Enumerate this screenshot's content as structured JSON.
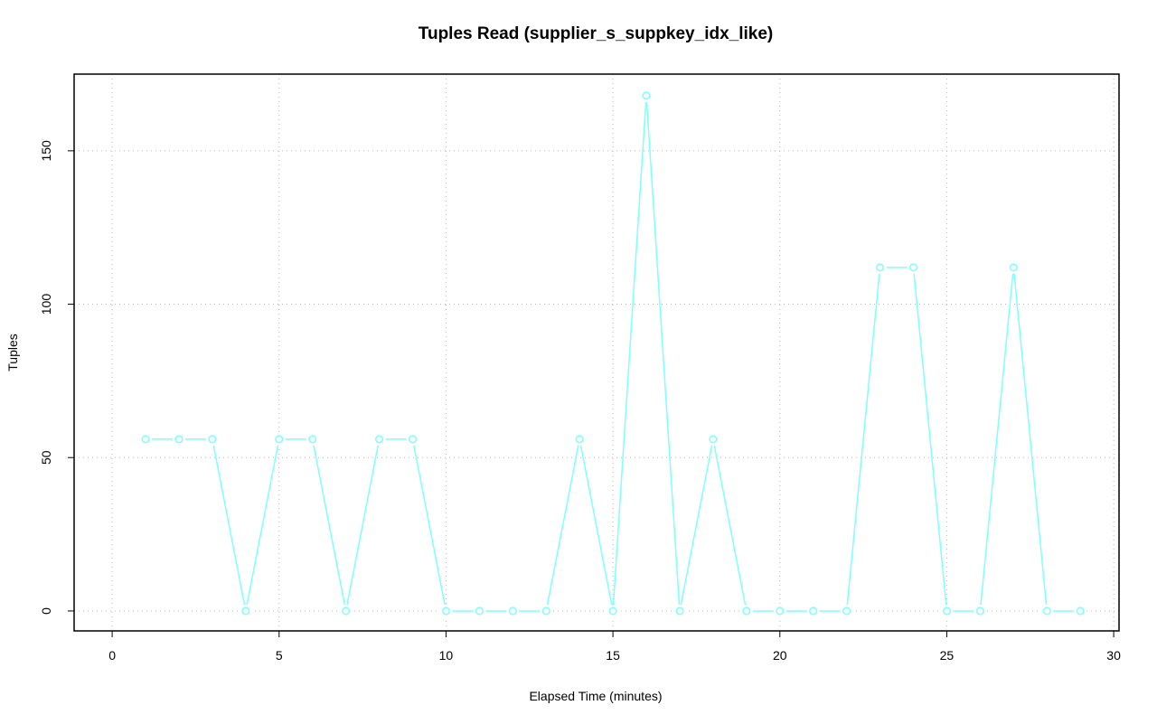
{
  "chart_data": {
    "type": "line",
    "title": "Tuples Read (supplier_s_suppkey_idx_like)",
    "x_label": "Elapsed Time (minutes)",
    "y_label": "Tuples",
    "x": [
      1,
      2,
      3,
      4,
      5,
      6,
      7,
      8,
      9,
      10,
      11,
      12,
      13,
      14,
      15,
      16,
      17,
      18,
      19,
      20,
      21,
      22,
      23,
      24,
      25,
      26,
      27,
      28,
      29
    ],
    "series": [
      {
        "name": "Tuples",
        "color": "#7fffff",
        "values": [
          56,
          56,
          56,
          0,
          56,
          56,
          0,
          56,
          56,
          0,
          0,
          0,
          0,
          56,
          0,
          168,
          0,
          56,
          0,
          0,
          0,
          0,
          112,
          112,
          0,
          0,
          112,
          0,
          0
        ]
      }
    ],
    "xlim": [
      -1.14,
      30.16
    ],
    "ylim": [
      -6.5,
      175
    ],
    "xticks": [
      0,
      5,
      10,
      15,
      20,
      25,
      30
    ],
    "yticks": [
      0,
      50,
      100,
      150
    ],
    "grid": true
  }
}
